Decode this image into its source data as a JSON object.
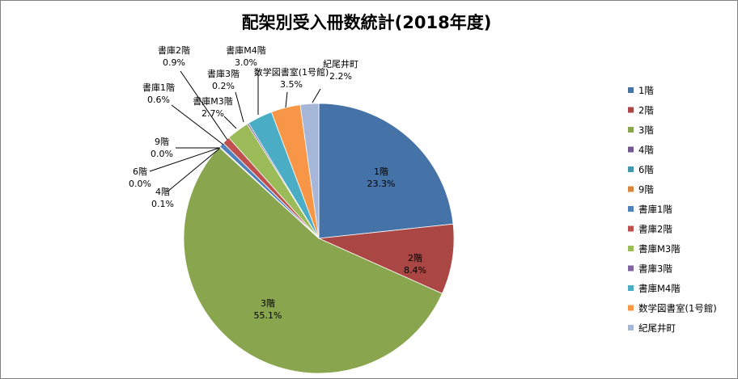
{
  "chart_data": {
    "type": "pie",
    "title": "配架別受入冊数統計(2018年度)",
    "start_angle_deg": 0,
    "direction": "clockwise",
    "legend_position": "right",
    "slices": [
      {
        "label": "1階",
        "value": 23.3,
        "display": "23.3%",
        "color": "#4572A7"
      },
      {
        "label": "2階",
        "value": 8.4,
        "display": "8.4%",
        "color": "#AA4643"
      },
      {
        "label": "3階",
        "value": 55.1,
        "display": "55.1%",
        "color": "#89A54E"
      },
      {
        "label": "4階",
        "value": 0.1,
        "display": "0.1%",
        "color": "#71588F"
      },
      {
        "label": "6階",
        "value": 0.0,
        "display": "0.0%",
        "color": "#4198AF"
      },
      {
        "label": "9階",
        "value": 0.0,
        "display": "0.0%",
        "color": "#DB843D"
      },
      {
        "label": "書庫1階",
        "value": 0.6,
        "display": "0.6%",
        "color": "#4F81BD"
      },
      {
        "label": "書庫2階",
        "value": 0.9,
        "display": "0.9%",
        "color": "#C0504D"
      },
      {
        "label": "書庫M3階",
        "value": 2.7,
        "display": "2.7%",
        "color": "#9BBB59"
      },
      {
        "label": "書庫3階",
        "value": 0.2,
        "display": "0.2%",
        "color": "#8064A2"
      },
      {
        "label": "書庫M4階",
        "value": 3.0,
        "display": "3.0%",
        "color": "#4BACC6"
      },
      {
        "label": "数学図書室(1号館)",
        "value": 3.5,
        "display": "3.5%",
        "color": "#F79646"
      },
      {
        "label": "紀尾井町",
        "value": 2.2,
        "display": "2.2%",
        "color": "#A5B6D8"
      }
    ]
  }
}
